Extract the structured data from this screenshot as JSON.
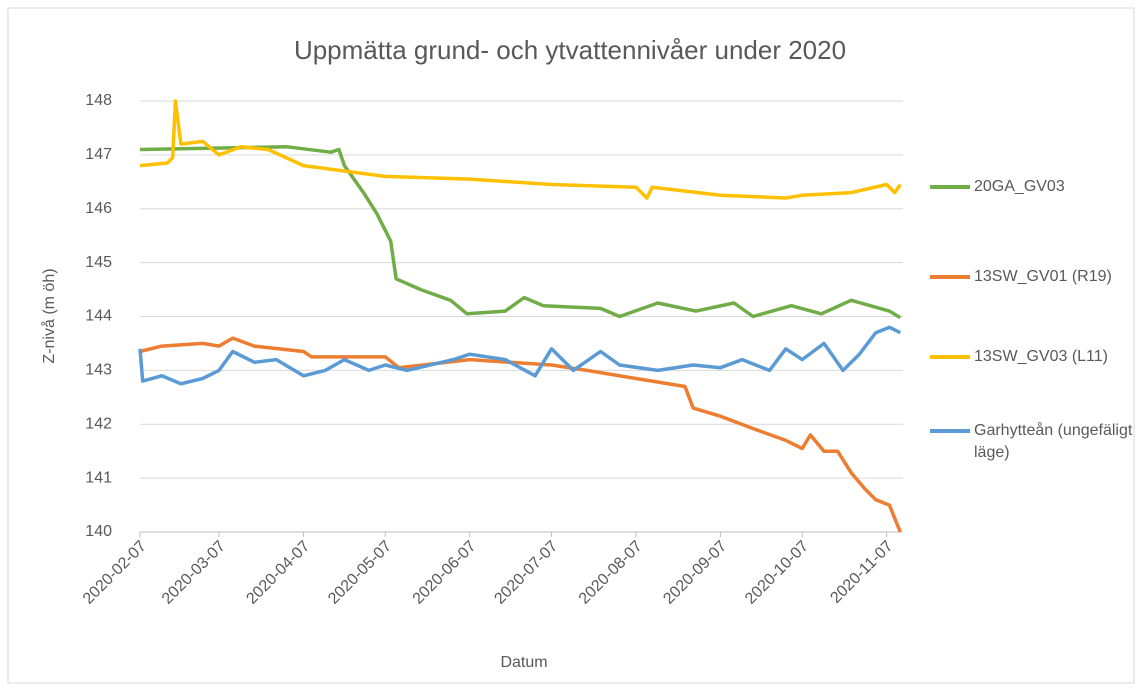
{
  "chart_data": {
    "type": "line",
    "title": "Uppmätta grund- och ytvattennivåer under 2020",
    "x_label": "Datum",
    "y_label": "Z-nivå (m öh)",
    "xlim": [
      "2020-02-07",
      "2020-11-13"
    ],
    "xticks": [
      "2020-02-07",
      "2020-03-07",
      "2020-04-07",
      "2020-05-07",
      "2020-06-07",
      "2020-07-07",
      "2020-08-07",
      "2020-09-07",
      "2020-10-07",
      "2020-11-07"
    ],
    "ylim": [
      140,
      148
    ],
    "yticks": [
      140,
      141,
      142,
      143,
      144,
      145,
      146,
      147,
      148
    ],
    "grid": true,
    "legend": "right",
    "series": [
      {
        "name": "20GA_GV03",
        "color": "#70ad47",
        "x": [
          "2020-02-07",
          "2020-03-01",
          "2020-04-01",
          "2020-04-17",
          "2020-04-20",
          "2020-04-22",
          "2020-04-29",
          "2020-05-04",
          "2020-05-09",
          "2020-05-11",
          "2020-05-20",
          "2020-05-31",
          "2020-06-06",
          "2020-06-20",
          "2020-06-27",
          "2020-07-04",
          "2020-07-25",
          "2020-08-01",
          "2020-08-15",
          "2020-08-29",
          "2020-09-12",
          "2020-09-19",
          "2020-10-03",
          "2020-10-14",
          "2020-10-25",
          "2020-11-01",
          "2020-11-08",
          "2020-11-12"
        ],
        "values": [
          147.1,
          147.12,
          147.15,
          147.05,
          147.1,
          146.8,
          146.3,
          145.9,
          145.4,
          144.7,
          144.5,
          144.3,
          144.05,
          144.1,
          144.35,
          144.2,
          144.15,
          144.0,
          144.25,
          144.1,
          144.25,
          144.0,
          144.2,
          144.05,
          144.3,
          144.2,
          144.1,
          143.98
        ]
      },
      {
        "name": "13SW_GV01 (R19)",
        "color": "#ed7d31",
        "x": [
          "2020-02-07",
          "2020-02-15",
          "2020-03-01",
          "2020-03-07",
          "2020-03-12",
          "2020-03-20",
          "2020-04-07",
          "2020-04-10",
          "2020-05-07",
          "2020-05-12",
          "2020-06-07",
          "2020-07-07",
          "2020-07-20",
          "2020-08-07",
          "2020-08-25",
          "2020-08-28",
          "2020-09-07",
          "2020-09-20",
          "2020-10-01",
          "2020-10-07",
          "2020-10-10",
          "2020-10-15",
          "2020-10-20",
          "2020-10-25",
          "2020-10-30",
          "2020-11-03",
          "2020-11-08",
          "2020-11-12"
        ],
        "values": [
          143.35,
          143.45,
          143.5,
          143.45,
          143.6,
          143.45,
          143.35,
          143.25,
          143.25,
          143.05,
          143.2,
          143.1,
          143.0,
          142.85,
          142.7,
          142.3,
          142.15,
          141.9,
          141.7,
          141.55,
          141.8,
          141.5,
          141.5,
          141.1,
          140.8,
          140.6,
          140.5,
          140.0
        ]
      },
      {
        "name": "13SW_GV03 (L11)",
        "color": "#ffc000",
        "x": [
          "2020-02-07",
          "2020-02-17",
          "2020-02-19",
          "2020-02-20",
          "2020-02-22",
          "2020-03-01",
          "2020-03-07",
          "2020-03-15",
          "2020-03-25",
          "2020-04-07",
          "2020-05-07",
          "2020-06-07",
          "2020-07-07",
          "2020-08-07",
          "2020-08-11",
          "2020-08-13",
          "2020-09-07",
          "2020-10-01",
          "2020-10-07",
          "2020-10-25",
          "2020-11-07",
          "2020-11-10",
          "2020-11-12"
        ],
        "values": [
          146.8,
          146.85,
          146.95,
          148.0,
          147.2,
          147.25,
          147.0,
          147.15,
          147.1,
          146.8,
          146.6,
          146.55,
          146.45,
          146.4,
          146.2,
          146.4,
          146.25,
          146.2,
          146.25,
          146.3,
          146.45,
          146.3,
          146.45
        ]
      },
      {
        "name": "Garhytteån (ungefäligt läge)",
        "color": "#5b9bd5",
        "x": [
          "2020-02-07",
          "2020-02-08",
          "2020-02-15",
          "2020-02-22",
          "2020-03-01",
          "2020-03-07",
          "2020-03-12",
          "2020-03-20",
          "2020-03-28",
          "2020-04-07",
          "2020-04-15",
          "2020-04-22",
          "2020-05-01",
          "2020-05-07",
          "2020-05-15",
          "2020-06-01",
          "2020-06-07",
          "2020-06-20",
          "2020-07-01",
          "2020-07-07",
          "2020-07-15",
          "2020-07-25",
          "2020-08-01",
          "2020-08-15",
          "2020-08-28",
          "2020-09-07",
          "2020-09-15",
          "2020-09-25",
          "2020-10-01",
          "2020-10-07",
          "2020-10-15",
          "2020-10-22",
          "2020-10-28",
          "2020-11-03",
          "2020-11-08",
          "2020-11-12"
        ],
        "values": [
          143.4,
          142.8,
          142.9,
          142.75,
          142.85,
          143.0,
          143.35,
          143.15,
          143.2,
          142.9,
          143.0,
          143.2,
          143.0,
          143.1,
          143.0,
          143.2,
          143.3,
          143.2,
          142.9,
          143.4,
          143.0,
          143.35,
          143.1,
          143.0,
          143.1,
          143.05,
          143.2,
          143.0,
          143.4,
          143.2,
          143.5,
          143.0,
          143.3,
          143.7,
          143.8,
          143.7
        ]
      }
    ]
  }
}
